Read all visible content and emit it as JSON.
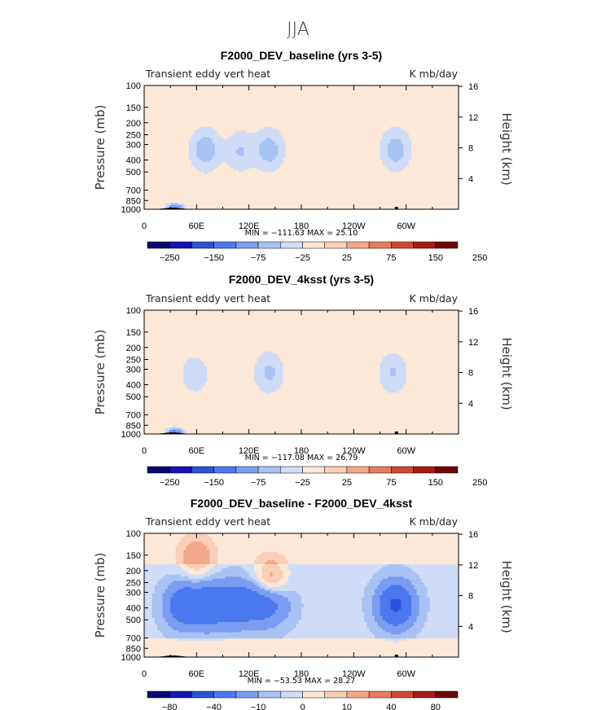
{
  "figure_title": "JJA",
  "colors": {
    "levels_9": [
      "#08086f",
      "#1414b4",
      "#2a52d8",
      "#4a78ee",
      "#7a9df2",
      "#a9c2f4",
      "#cfdcf7",
      "#fde8d8",
      "#f9cfb8",
      "#f3a88a",
      "#e87c5e",
      "#d04a33",
      "#a61c14",
      "#6d0707"
    ],
    "background_band": "#d4e1f8",
    "upper_band": "#fde8d8"
  },
  "chart_data": [
    {
      "type": "contour",
      "panel_id": "baseline",
      "title": "F2000_DEV_baseline (yrs 3-5)",
      "left_label": "Transient eddy vert heat",
      "right_label": "K mb/day",
      "ylabel": "Pressure (mb)",
      "ylabel_right": "Height (km)",
      "x_ticks": [
        "0",
        "60E",
        "120E",
        "180",
        "120W",
        "60W"
      ],
      "x_tick_lons": [
        0,
        60,
        120,
        180,
        240,
        300
      ],
      "y_ticks": [
        "100",
        "150",
        "200",
        "250",
        "300",
        "400",
        "500",
        "700",
        "850",
        "1000"
      ],
      "y_tick_p": [
        100,
        150,
        200,
        250,
        300,
        400,
        500,
        700,
        850,
        1000
      ],
      "y_ticks_right": [
        "16",
        "12",
        "8",
        "4"
      ],
      "y_tick_km": [
        16,
        12,
        8,
        4
      ],
      "stats": "MIN = −111.63   MAX =  25.10",
      "colorbar_labels": [
        "−250",
        "−150",
        "−75",
        "−25",
        "25",
        "75",
        "150",
        "250"
      ],
      "colorbar_levels": [
        -300,
        -250,
        -200,
        -150,
        -100,
        -75,
        -50,
        -25,
        25,
        50,
        75,
        100,
        150,
        200,
        250
      ],
      "min": -111.63,
      "max": 25.1,
      "features": [
        {
          "lon": 70,
          "p": 330,
          "v": -60
        },
        {
          "lon": 110,
          "p": 340,
          "v": -40
        },
        {
          "lon": 143,
          "p": 330,
          "v": -55
        },
        {
          "lon": 288,
          "p": 330,
          "v": -55
        },
        {
          "lon": 35,
          "p": 960,
          "v": -110
        }
      ]
    },
    {
      "type": "contour",
      "panel_id": "4ksst",
      "title": "F2000_DEV_4ksst (yrs 3-5)",
      "left_label": "Transient eddy vert heat",
      "right_label": "K mb/day",
      "ylabel": "Pressure (mb)",
      "ylabel_right": "Height (km)",
      "x_ticks": [
        "0",
        "60E",
        "120E",
        "180",
        "120W",
        "60W"
      ],
      "x_tick_lons": [
        0,
        60,
        120,
        180,
        240,
        300
      ],
      "y_ticks": [
        "100",
        "150",
        "200",
        "250",
        "300",
        "400",
        "500",
        "700",
        "850",
        "1000"
      ],
      "y_tick_p": [
        100,
        150,
        200,
        250,
        300,
        400,
        500,
        700,
        850,
        1000
      ],
      "y_ticks_right": [
        "16",
        "12",
        "8",
        "4"
      ],
      "y_tick_km": [
        16,
        12,
        8,
        4
      ],
      "stats": "MIN = −117.08   MAX =  26.79",
      "colorbar_labels": [
        "−250",
        "−150",
        "−75",
        "−25",
        "25",
        "75",
        "150",
        "250"
      ],
      "colorbar_levels": [
        -300,
        -250,
        -200,
        -150,
        -100,
        -75,
        -50,
        -25,
        25,
        50,
        75,
        100,
        150,
        200,
        250
      ],
      "min": -117.08,
      "max": 26.79,
      "features": [
        {
          "lon": 58,
          "p": 330,
          "v": -30
        },
        {
          "lon": 143,
          "p": 320,
          "v": -45
        },
        {
          "lon": 285,
          "p": 320,
          "v": -40
        },
        {
          "lon": 35,
          "p": 960,
          "v": -115
        }
      ]
    },
    {
      "type": "contour",
      "panel_id": "difference",
      "title": "F2000_DEV_baseline - F2000_DEV_4ksst",
      "left_label": "Transient eddy vert heat",
      "right_label": "K mb/day",
      "ylabel": "Pressure (mb)",
      "ylabel_right": "Height (km)",
      "x_ticks": [
        "0",
        "60E",
        "120E",
        "180",
        "120W",
        "60W"
      ],
      "x_tick_lons": [
        0,
        60,
        120,
        180,
        240,
        300
      ],
      "y_ticks": [
        "100",
        "150",
        "200",
        "250",
        "300",
        "400",
        "500",
        "700",
        "850",
        "1000"
      ],
      "y_tick_p": [
        100,
        150,
        200,
        250,
        300,
        400,
        500,
        700,
        850,
        1000
      ],
      "y_ticks_right": [
        "16",
        "12",
        "8",
        "4"
      ],
      "y_tick_km": [
        16,
        12,
        8,
        4
      ],
      "stats": "MIN = −53.53   MAX =  28.27",
      "colorbar_labels": [
        "−80",
        "−40",
        "−10",
        "0",
        "10",
        "40",
        "80"
      ],
      "colorbar_levels": [
        -100,
        -80,
        -60,
        -40,
        -20,
        -10,
        -5,
        0,
        5,
        10,
        20,
        40,
        60,
        80,
        100
      ],
      "min": -53.53,
      "max": 28.27,
      "features": [
        {
          "lon": 45,
          "p": 380,
          "v": -30
        },
        {
          "lon": 75,
          "p": 380,
          "v": -30
        },
        {
          "lon": 105,
          "p": 370,
          "v": -25
        },
        {
          "lon": 130,
          "p": 370,
          "v": -20
        },
        {
          "lon": 150,
          "p": 360,
          "v": -15
        },
        {
          "lon": 288,
          "p": 380,
          "v": -40
        },
        {
          "lon": 60,
          "p": 160,
          "v": 15
        },
        {
          "lon": 145,
          "p": 240,
          "v": 20
        }
      ]
    }
  ]
}
